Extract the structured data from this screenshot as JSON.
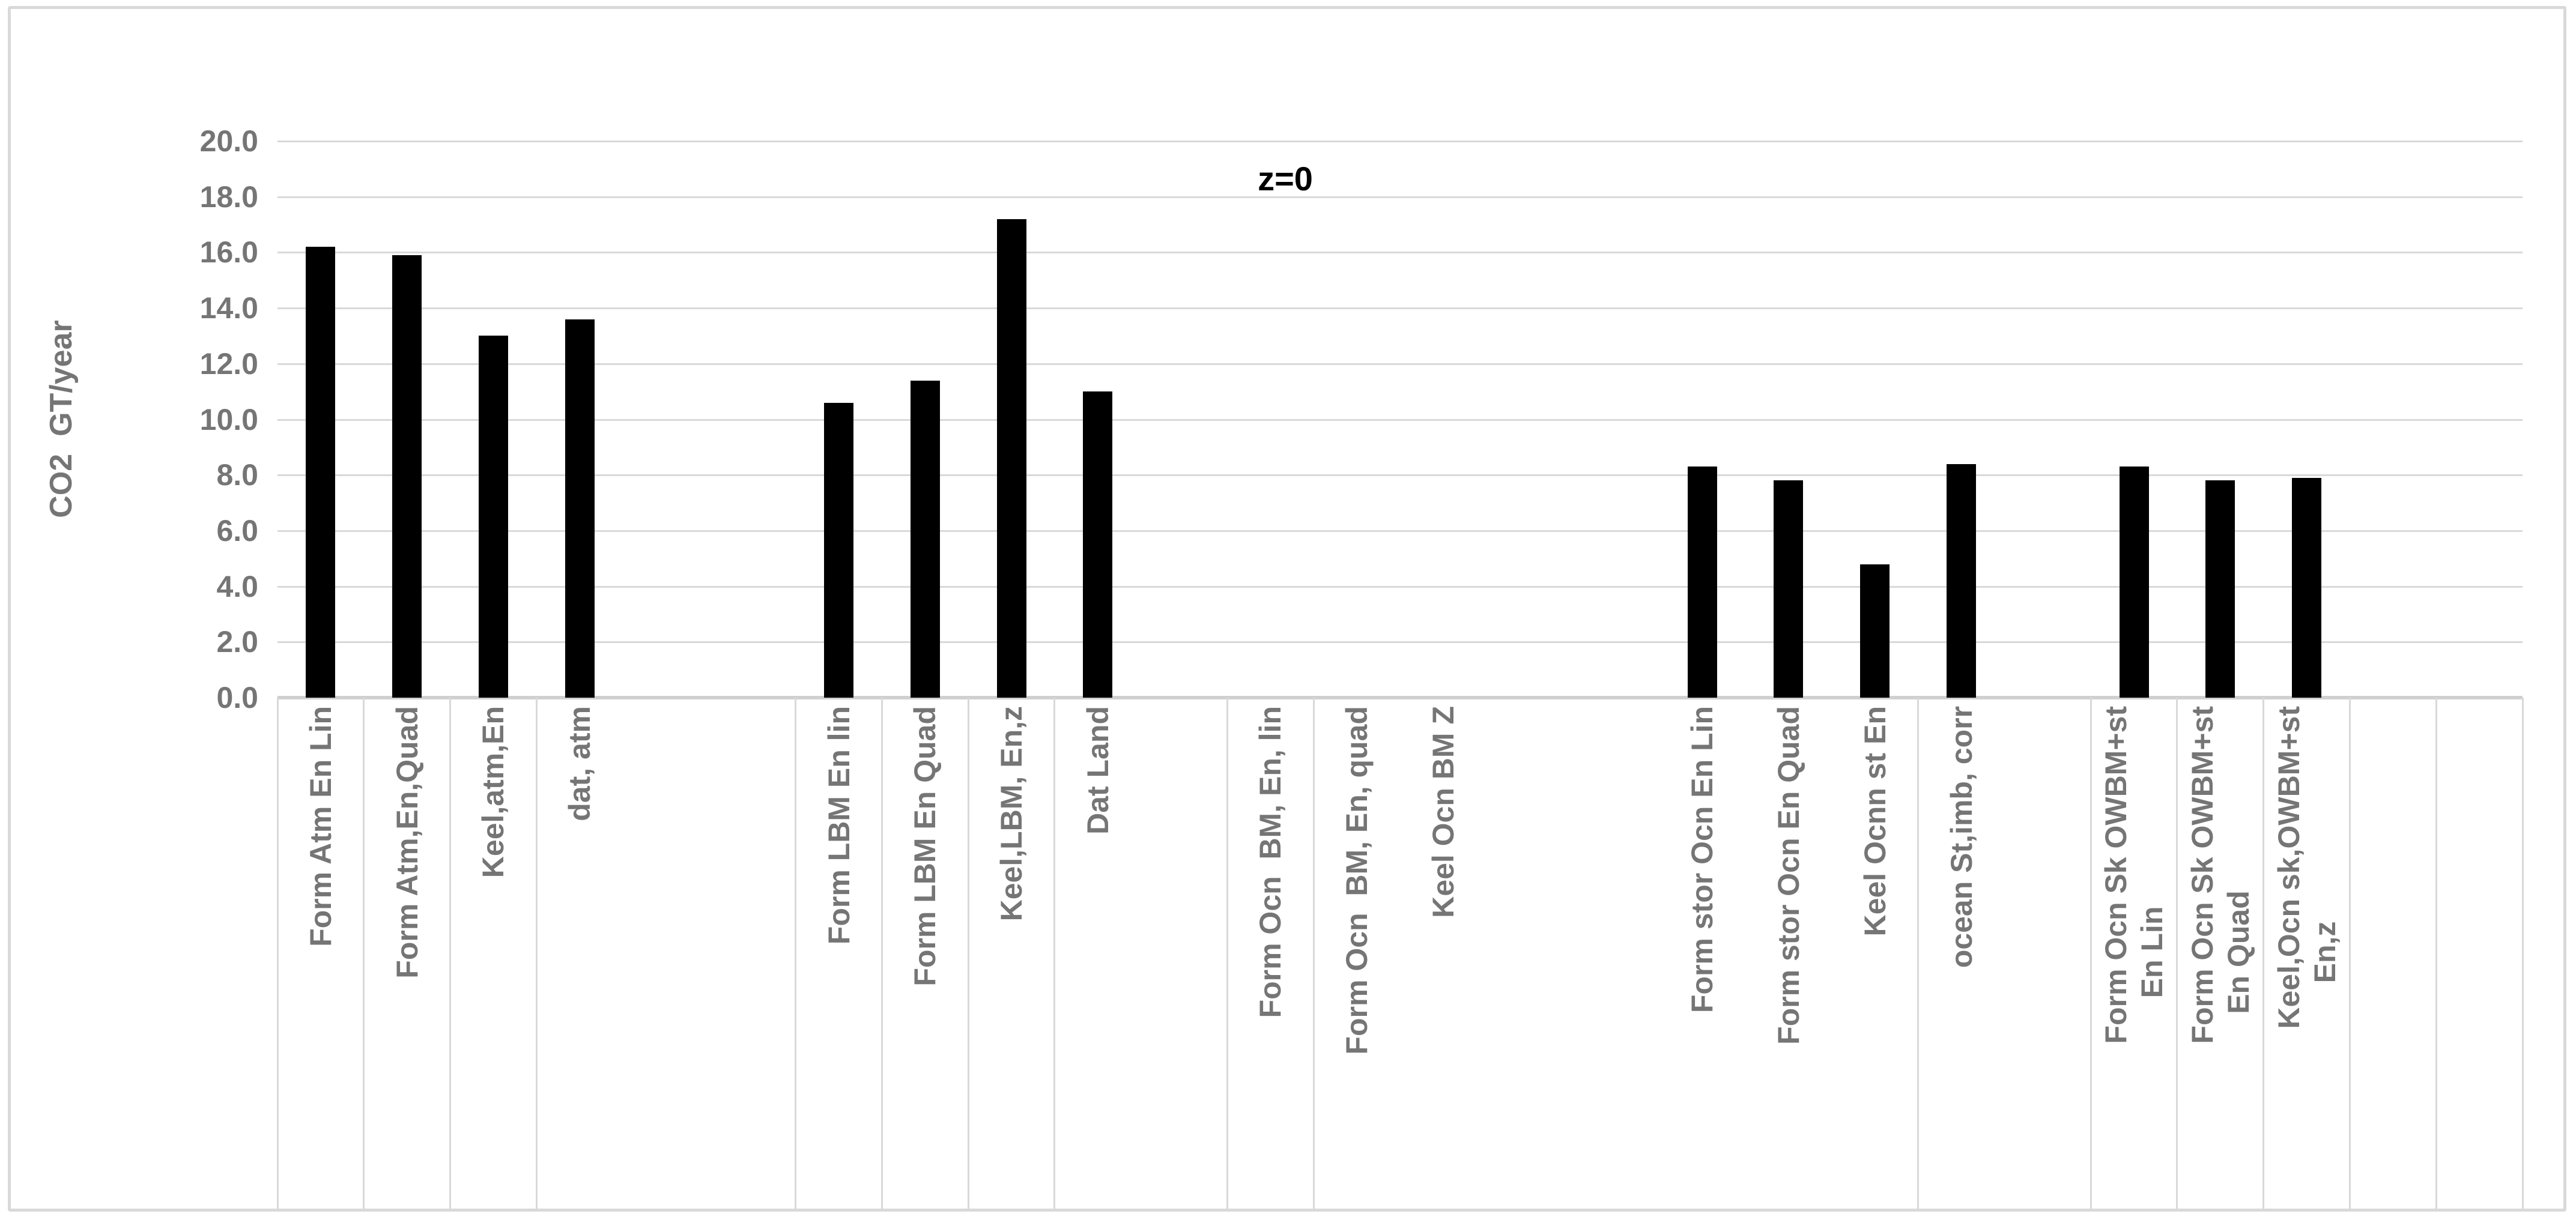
{
  "chart_data": {
    "type": "bar",
    "title": "z=0",
    "xlabel": "",
    "ylabel": "CO2  GT/year",
    "ylim": [
      0,
      20
    ],
    "ytick_interval": 2,
    "ytick_labels": [
      "0.0",
      "2.0",
      "4.0",
      "6.0",
      "8.0",
      "10.0",
      "12.0",
      "14.0",
      "16.0",
      "18.0",
      "20.0"
    ],
    "grid": true,
    "legend": "none",
    "categories": [
      "Form Atm En Lin",
      "Form Atm,En,Quad",
      "Keel,atm,En",
      "dat, atm",
      "",
      "",
      "Form LBM En lin",
      "Form LBM En Quad",
      "Keel,LBM, En,z",
      "Dat Land",
      "",
      "Form Ocn  BM, En, lin",
      "Form Ocn  BM, En, quad",
      "Keel Ocn BM Z",
      "",
      "",
      "Form stor Ocn En Lin",
      "Form stor Ocn En Quad",
      "Keel Ocnn st En",
      "ocean St,imb, corr",
      "",
      "Form Ocn Sk OWBM+st En Lin",
      "Form Ocn Sk OWBM+st En Quad",
      "Keel,Ocn sk,OWBM+st En,z",
      "",
      ""
    ],
    "values": [
      16.2,
      15.9,
      13.0,
      13.6,
      0,
      0,
      10.6,
      11.4,
      17.2,
      11.0,
      0,
      0,
      0,
      0,
      0,
      0,
      8.3,
      7.8,
      4.8,
      8.4,
      0,
      8.3,
      7.8,
      7.9,
      0,
      0
    ],
    "label_lines": [
      [
        "Form Atm En Lin"
      ],
      [
        "Form Atm,En,Quad"
      ],
      [
        "Keel,atm,En"
      ],
      [
        "dat, atm"
      ],
      [],
      [],
      [
        "Form LBM En lin"
      ],
      [
        "Form LBM En Quad"
      ],
      [
        "Keel,LBM, En,z"
      ],
      [
        "Dat Land"
      ],
      [],
      [
        "Form Ocn  BM, En, lin"
      ],
      [
        "Form Ocn  BM, En, quad"
      ],
      [
        "Keel Ocn BM Z"
      ],
      [],
      [],
      [
        "Form stor Ocn En Lin"
      ],
      [
        "Form stor Ocn En Quad"
      ],
      [
        "Keel Ocnn st En"
      ],
      [
        "ocean St,imb, corr"
      ],
      [],
      [
        "Form Ocn Sk OWBM+st",
        "En Lin"
      ],
      [
        "Form Ocn Sk OWBM+st",
        "En Quad"
      ],
      [
        "Keel,Ocn sk,OWBM+st",
        "En,z"
      ],
      [],
      []
    ],
    "separators_after": [
      0,
      1,
      2,
      3,
      6,
      7,
      8,
      9,
      11,
      12,
      19,
      21,
      22,
      23,
      24,
      25,
      26
    ],
    "colors": {
      "bar": "#000000",
      "axis_text": "#757575",
      "gridline": "#d9d9d9",
      "axis_line": "#d0d0d0",
      "separator": "#d9d9d9",
      "border": "#d9d9d9",
      "annotation": "#000000",
      "background": "#ffffff"
    }
  }
}
